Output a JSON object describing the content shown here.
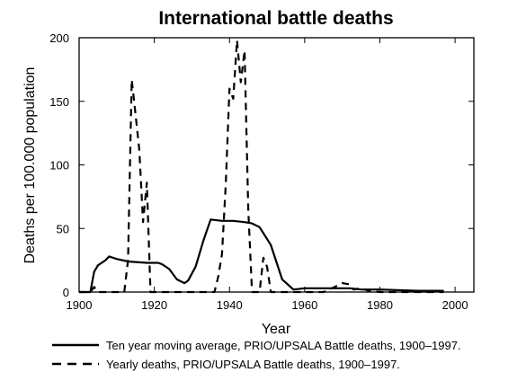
{
  "chart_data": {
    "type": "line",
    "title": "International battle deaths",
    "xlabel": "Year",
    "ylabel": "Deaths per 100.000 population",
    "xlim": [
      1900,
      2005
    ],
    "ylim": [
      0,
      200
    ],
    "x_ticks": [
      1900,
      1920,
      1940,
      1960,
      1980,
      2000
    ],
    "y_ticks": [
      0,
      50,
      100,
      150,
      200
    ],
    "grid": false,
    "legend_position": "bottom",
    "series": [
      {
        "name": "Ten year moving average, PRIO/UPSALA Battle deaths, 1900–1997.",
        "style": "solid",
        "color": "#000000",
        "points": [
          [
            1900,
            0
          ],
          [
            1903,
            0
          ],
          [
            1904,
            16
          ],
          [
            1905,
            21
          ],
          [
            1907,
            25
          ],
          [
            1908,
            28
          ],
          [
            1910,
            26
          ],
          [
            1913,
            24
          ],
          [
            1918,
            23
          ],
          [
            1921,
            23
          ],
          [
            1922,
            22
          ],
          [
            1924,
            18
          ],
          [
            1926,
            10
          ],
          [
            1928,
            7
          ],
          [
            1929,
            9
          ],
          [
            1931,
            20
          ],
          [
            1933,
            40
          ],
          [
            1935,
            57
          ],
          [
            1938,
            56
          ],
          [
            1941,
            56
          ],
          [
            1944,
            55
          ],
          [
            1946,
            54
          ],
          [
            1948,
            51
          ],
          [
            1951,
            37
          ],
          [
            1954,
            10
          ],
          [
            1957,
            2
          ],
          [
            1960,
            3
          ],
          [
            1965,
            3
          ],
          [
            1972,
            3
          ],
          [
            1975,
            2
          ],
          [
            1980,
            2
          ],
          [
            1990,
            1
          ],
          [
            1997,
            1
          ]
        ]
      },
      {
        "name": "Yearly deaths, PRIO/UPSALA Battle deaths, 1900–1997.",
        "style": "dashed",
        "color": "#000000",
        "points": [
          [
            1900,
            0
          ],
          [
            1903,
            0
          ],
          [
            1904,
            4
          ],
          [
            1905,
            0
          ],
          [
            1912,
            0
          ],
          [
            1913,
            25
          ],
          [
            1914,
            167
          ],
          [
            1915,
            140
          ],
          [
            1916,
            112
          ],
          [
            1917,
            55
          ],
          [
            1918,
            86
          ],
          [
            1919,
            0
          ],
          [
            1936,
            0
          ],
          [
            1937,
            12
          ],
          [
            1938,
            30
          ],
          [
            1939,
            85
          ],
          [
            1940,
            160
          ],
          [
            1941,
            152
          ],
          [
            1942,
            198
          ],
          [
            1943,
            165
          ],
          [
            1944,
            190
          ],
          [
            1945,
            65
          ],
          [
            1946,
            0
          ],
          [
            1948,
            0
          ],
          [
            1949,
            27
          ],
          [
            1950,
            20
          ],
          [
            1951,
            0
          ],
          [
            1965,
            0
          ],
          [
            1968,
            4
          ],
          [
            1970,
            7
          ],
          [
            1972,
            6
          ],
          [
            1973,
            2
          ],
          [
            1975,
            3
          ],
          [
            1977,
            1
          ],
          [
            1980,
            0
          ],
          [
            1997,
            0
          ]
        ]
      }
    ]
  }
}
